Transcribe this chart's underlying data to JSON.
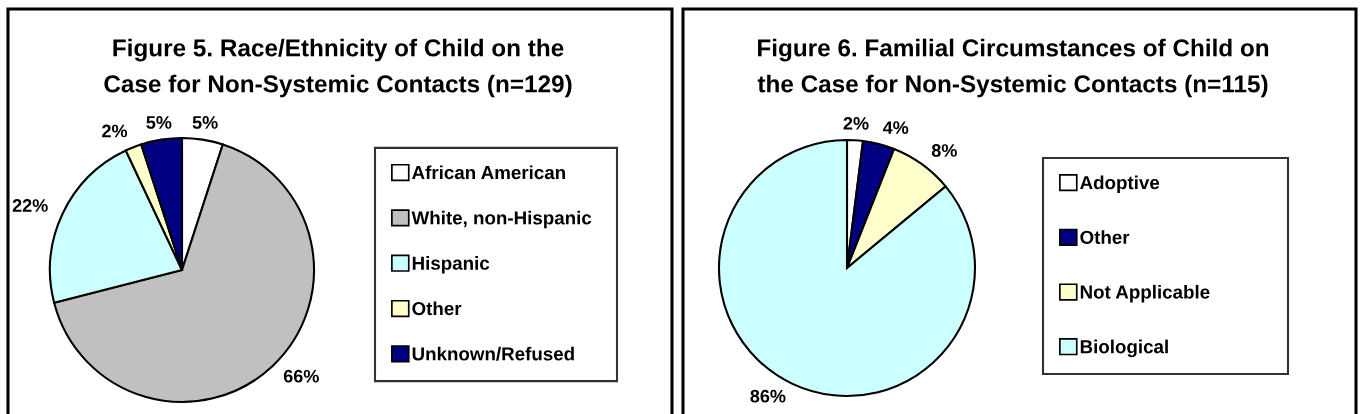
{
  "chart_data": [
    {
      "type": "pie",
      "title": "Figure 5. Race/Ethnicity of Child on the\nCase for Non-Systemic Contacts (n=129)",
      "categories": [
        "African American",
        "White, non-Hispanic",
        "Hispanic",
        "Other",
        "Unknown/Refused"
      ],
      "values": [
        5,
        66,
        22,
        2,
        5
      ],
      "colors": [
        "#ffffff",
        "#c0c0c0",
        "#ccffff",
        "#ffffcc",
        "#000080"
      ],
      "value_labels": [
        "5%",
        "66%",
        "22%",
        "2%",
        "5%"
      ],
      "legend": "right"
    },
    {
      "type": "pie",
      "title": "Figure 6. Familial Circumstances of Child on\nthe Case for Non-Systemic Contacts (n=115)",
      "categories": [
        "Adoptive",
        "Other",
        "Not Applicable",
        "Biological"
      ],
      "values": [
        2,
        4,
        8,
        86
      ],
      "colors": [
        "#ffffff",
        "#000080",
        "#ffffcc",
        "#ccffff"
      ],
      "value_labels": [
        "2%",
        "4%",
        "8%",
        "86%"
      ],
      "legend": "right"
    }
  ]
}
